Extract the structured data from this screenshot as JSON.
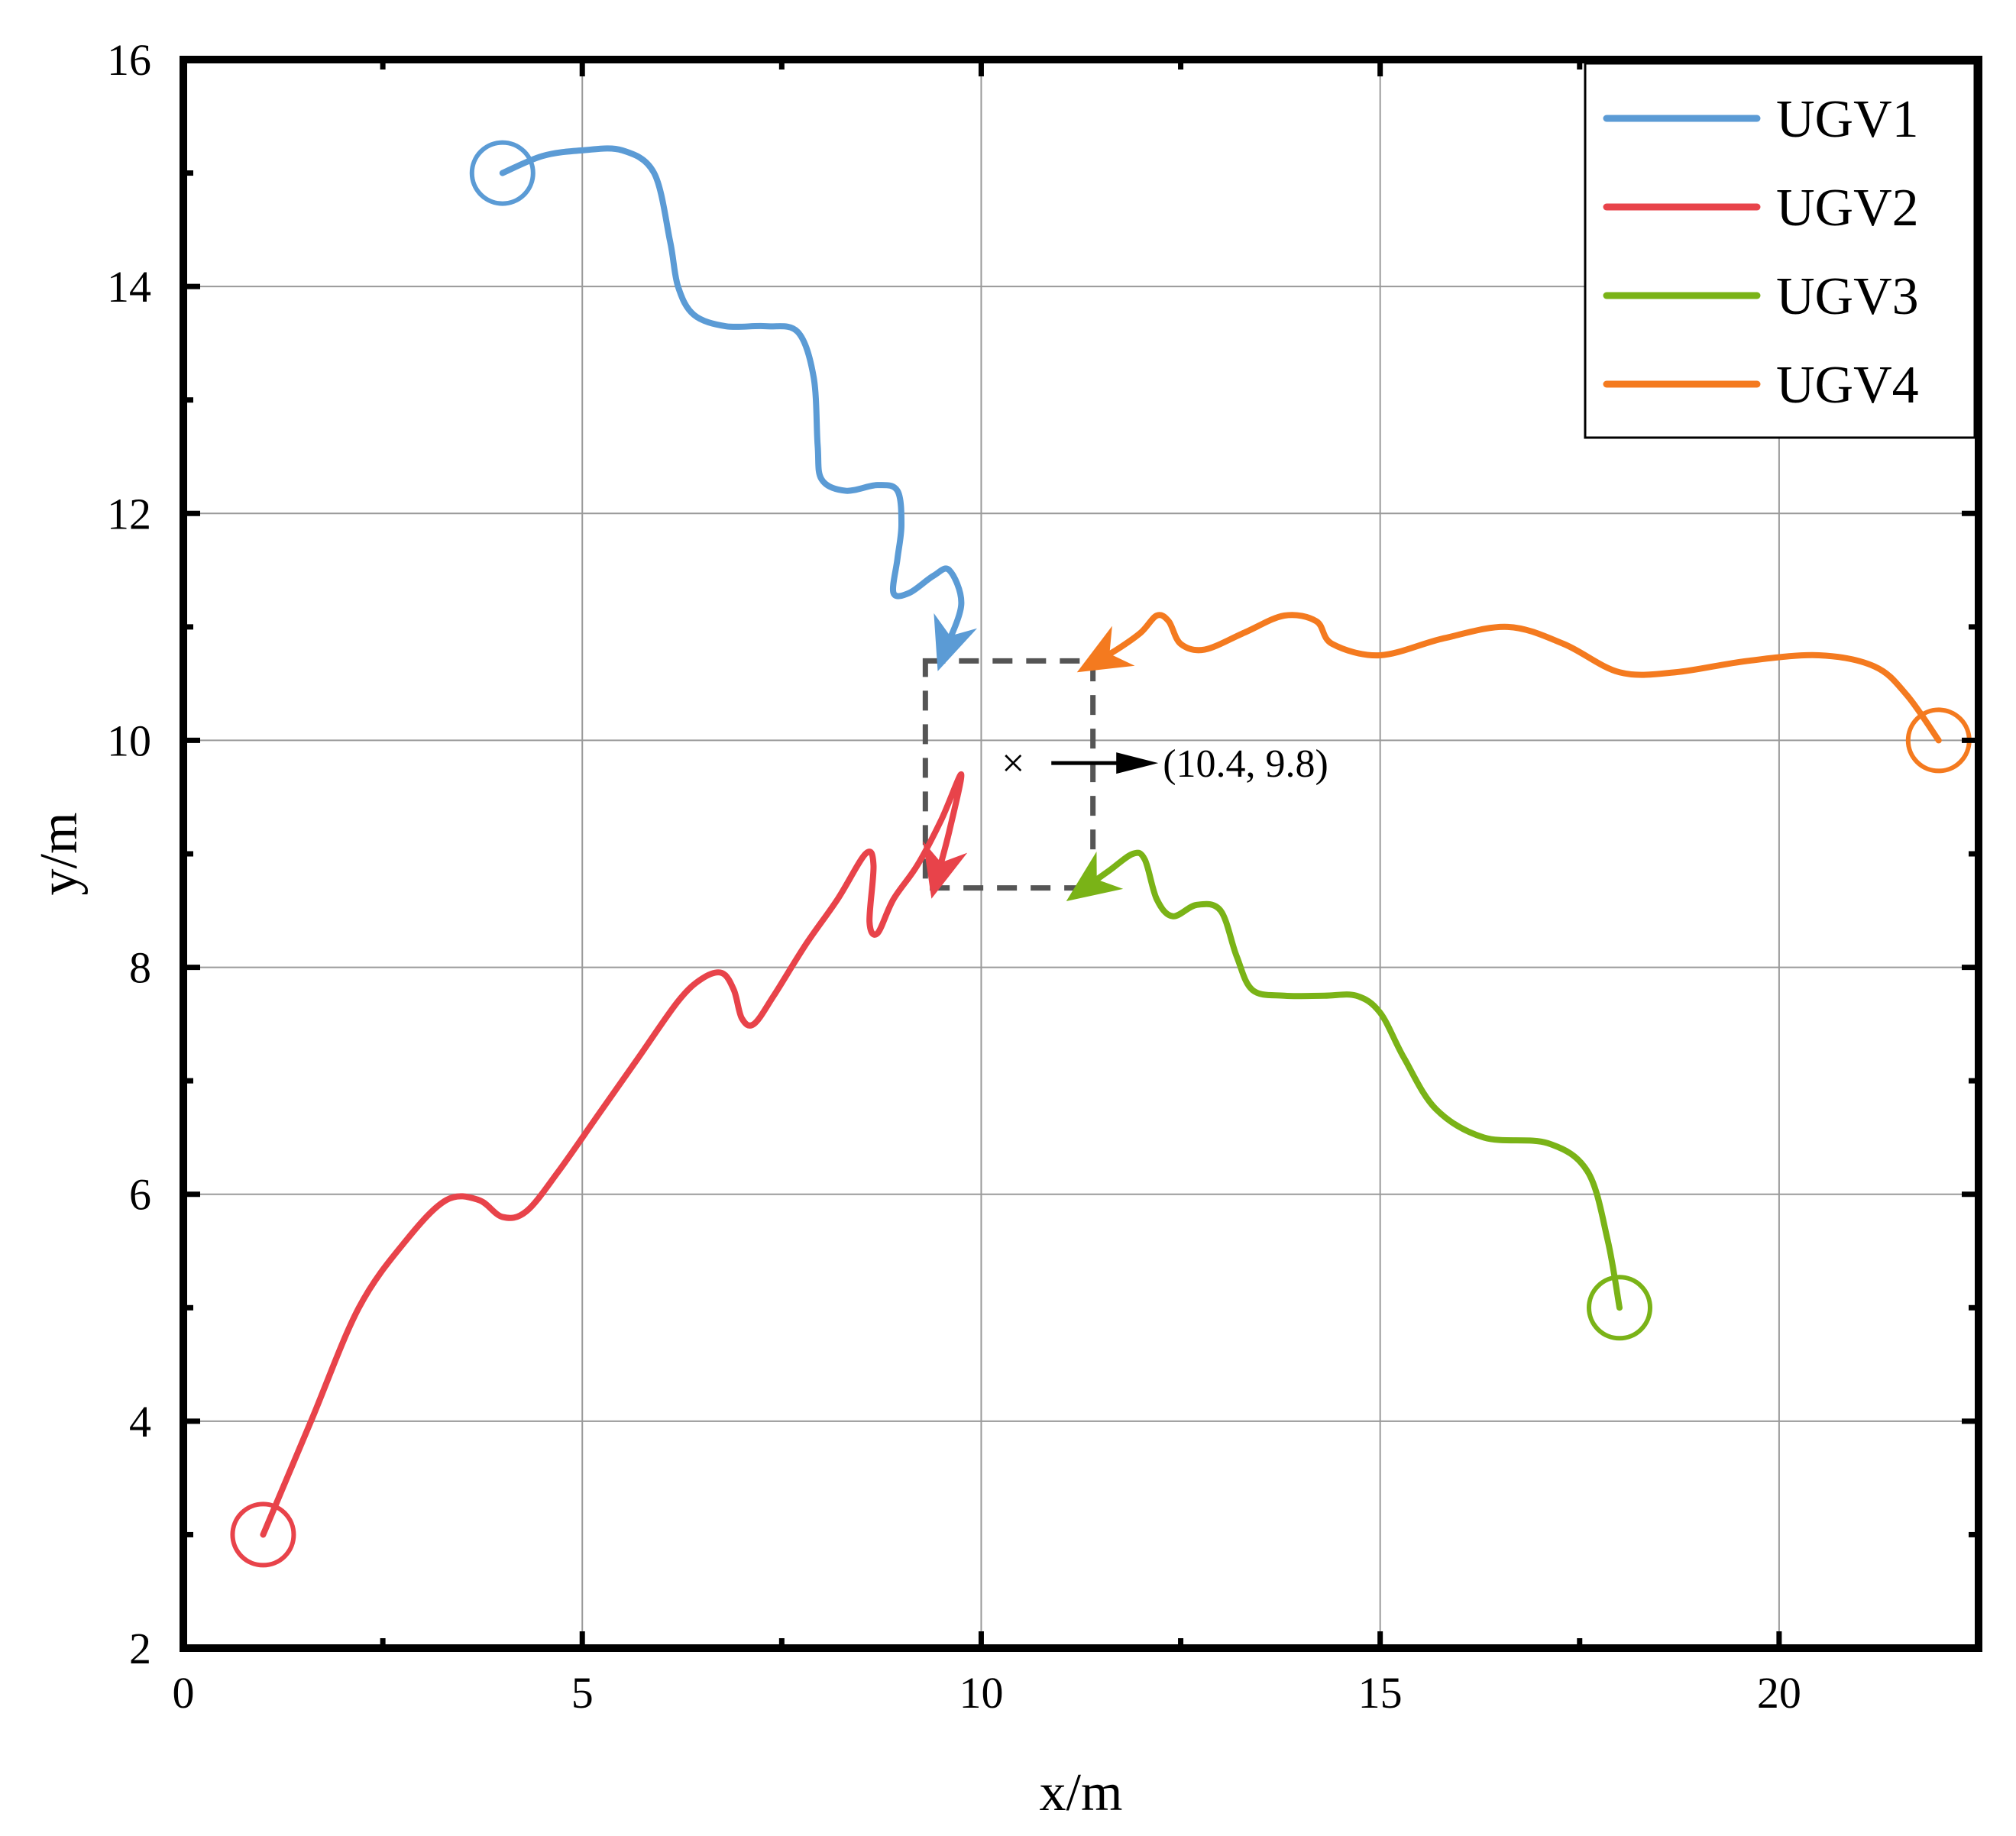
{
  "chart_data": {
    "type": "line",
    "xlabel": "x/m",
    "ylabel": "y/m",
    "xlim": [
      0,
      22.5
    ],
    "ylim": [
      2,
      16
    ],
    "xticks": [
      0,
      5,
      10,
      15,
      20
    ],
    "yticks": [
      2,
      4,
      6,
      8,
      10,
      12,
      14,
      16
    ],
    "grid": true,
    "legend_position": "top-right",
    "series": [
      {
        "name": "UGV1",
        "color": "#5b9bd5",
        "start": [
          4.0,
          15.0
        ],
        "x": [
          4.0,
          4.5,
          5.0,
          5.5,
          5.9,
          6.1,
          6.2,
          6.4,
          6.8,
          7.3,
          7.7,
          7.9,
          7.95,
          8.0,
          8.3,
          8.7,
          8.95,
          9.0,
          8.95,
          8.9,
          9.1,
          9.4,
          9.6,
          9.75,
          9.55
        ],
        "y": [
          15.0,
          15.15,
          15.2,
          15.2,
          15.0,
          14.4,
          14.0,
          13.75,
          13.65,
          13.65,
          13.6,
          13.2,
          12.6,
          12.3,
          12.2,
          12.25,
          12.2,
          11.9,
          11.6,
          11.3,
          11.3,
          11.45,
          11.5,
          11.2,
          10.8
        ]
      },
      {
        "name": "UGV2",
        "color": "#e8434a",
        "start": [
          1.0,
          3.0
        ],
        "x": [
          1.0,
          1.6,
          2.2,
          2.8,
          3.3,
          3.7,
          4.0,
          4.3,
          4.7,
          5.2,
          5.7,
          6.2,
          6.5,
          6.75,
          6.9,
          7.0,
          7.15,
          7.4,
          7.8,
          8.2,
          8.55,
          8.65,
          8.6,
          8.7,
          8.9,
          9.2,
          9.5,
          9.75,
          9.6,
          9.45
        ],
        "y": [
          3.0,
          4.0,
          5.0,
          5.6,
          5.95,
          5.95,
          5.8,
          5.85,
          6.2,
          6.7,
          7.2,
          7.7,
          7.9,
          7.95,
          7.8,
          7.55,
          7.5,
          7.75,
          8.2,
          8.6,
          9.0,
          8.9,
          8.4,
          8.3,
          8.6,
          8.9,
          9.3,
          9.7,
          9.2,
          8.8
        ]
      },
      {
        "name": "UGV3",
        "color": "#7ab317",
        "start": [
          18.0,
          5.0
        ],
        "x": [
          18.0,
          17.85,
          17.6,
          17.1,
          16.3,
          15.7,
          15.3,
          15.0,
          14.7,
          14.3,
          13.8,
          13.4,
          13.2,
          13.0,
          12.7,
          12.4,
          12.2,
          12.05,
          11.9,
          11.6,
          11.3
        ],
        "y": [
          5.0,
          5.6,
          6.2,
          6.45,
          6.5,
          6.75,
          7.2,
          7.6,
          7.75,
          7.75,
          7.75,
          7.8,
          8.1,
          8.5,
          8.55,
          8.45,
          8.6,
          8.95,
          9.0,
          8.85,
          8.7
        ]
      },
      {
        "name": "UGV4",
        "color": "#f47a1f",
        "start": [
          22.0,
          10.0
        ],
        "x": [
          22.0,
          21.6,
          21.2,
          20.5,
          19.6,
          18.7,
          18.0,
          17.3,
          16.6,
          15.8,
          15.0,
          14.4,
          14.2,
          13.8,
          13.3,
          12.8,
          12.5,
          12.35,
          12.2,
          12.0,
          11.7,
          11.45
        ],
        "y": [
          10.0,
          10.4,
          10.65,
          10.75,
          10.7,
          10.6,
          10.6,
          10.85,
          11.0,
          10.9,
          10.75,
          10.85,
          11.05,
          11.1,
          10.95,
          10.8,
          10.85,
          11.05,
          11.1,
          10.95,
          10.8,
          10.7
        ]
      }
    ],
    "annotation": {
      "label": "(10.4, 9.8)",
      "marker": "×",
      "point": [
        10.4,
        9.8
      ],
      "box_x": [
        9.3,
        11.4
      ],
      "box_y": [
        8.7,
        10.7
      ]
    }
  }
}
